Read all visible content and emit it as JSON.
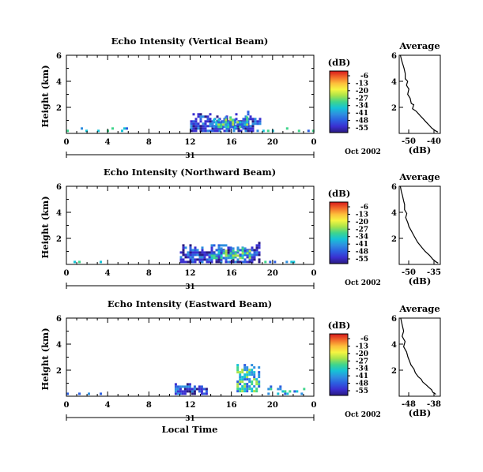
{
  "colorbar": {
    "unit_label": "(dB)",
    "ticks": [
      "-6",
      "-13",
      "-20",
      "-27",
      "-34",
      "-41",
      "-48",
      "-55"
    ],
    "colors": [
      "#d7191c",
      "#f26b2a",
      "#fdbf3b",
      "#f5f542",
      "#a8e34a",
      "#3fd58c",
      "#16c2d6",
      "#2e8fe0",
      "#2c5fe0",
      "#3a2fd0",
      "#2a1a80"
    ]
  },
  "footer": {
    "date_label": "Oct 2002",
    "day_label": "31",
    "xlabel": "Local Time"
  },
  "chart_data": [
    {
      "type": "heatmap",
      "title": "Echo Intensity (Vertical Beam)",
      "ylabel": "Height (km)",
      "xlim": [
        0,
        24
      ],
      "ylim": [
        0,
        6
      ],
      "x_ticks": [
        "0",
        "4",
        "8",
        "12",
        "16",
        "20",
        "0"
      ],
      "y_ticks": [
        "2",
        "4",
        "6"
      ],
      "echo_regions": [
        {
          "x": [
            0.0,
            6.0
          ],
          "y": [
            0.1,
            0.55
          ],
          "level": "weak",
          "dB": -50
        },
        {
          "x": [
            12.0,
            18.8
          ],
          "y": [
            0.1,
            1.8
          ],
          "level": "main",
          "dB": -45
        },
        {
          "x": [
            14.2,
            17.5
          ],
          "y": [
            0.4,
            1.4
          ],
          "level": "core",
          "dB": -40
        },
        {
          "x": [
            19.0,
            24.0
          ],
          "y": [
            0.1,
            0.55
          ],
          "level": "weak",
          "dB": -50
        }
      ]
    },
    {
      "type": "line",
      "title": "Average",
      "xlabel": "(dB)",
      "x_ticks": [
        "-50",
        "-40"
      ],
      "xlim": [
        -52,
        -35
      ],
      "ylim": [
        0,
        6
      ],
      "y_ticks": [
        "2",
        "4",
        "6"
      ],
      "x": [
        -51.5,
        -51,
        -50.5,
        -50,
        -49.5,
        -49.5,
        -48.5,
        -49,
        -48,
        -48.5,
        -47.5,
        -47,
        -46,
        -46.5,
        -45,
        -44,
        -43,
        -42,
        -41,
        -40,
        -38.5,
        -37,
        -36
      ],
      "y": [
        6.0,
        5.6,
        5.3,
        5.0,
        4.6,
        4.2,
        4.0,
        3.7,
        3.4,
        3.0,
        2.7,
        2.3,
        2.2,
        1.9,
        1.7,
        1.5,
        1.3,
        1.1,
        0.9,
        0.7,
        0.4,
        0.2,
        0.1
      ]
    },
    {
      "type": "heatmap",
      "title": "Echo Intensity (Northward Beam)",
      "ylabel": "Height (km)",
      "xlim": [
        0,
        24
      ],
      "ylim": [
        0,
        6
      ],
      "x_ticks": [
        "0",
        "4",
        "8",
        "12",
        "16",
        "20",
        "0"
      ],
      "y_ticks": [
        "2",
        "4",
        "6"
      ],
      "echo_regions": [
        {
          "x": [
            0.0,
            3.5
          ],
          "y": [
            0.1,
            0.45
          ],
          "level": "weak",
          "dB": -50
        },
        {
          "x": [
            11.0,
            18.8
          ],
          "y": [
            0.1,
            1.9
          ],
          "level": "main",
          "dB": -45
        },
        {
          "x": [
            14.0,
            17.8
          ],
          "y": [
            0.4,
            1.5
          ],
          "level": "core",
          "dB": -40
        },
        {
          "x": [
            18.5,
            22.0
          ],
          "y": [
            0.1,
            0.4
          ],
          "level": "weak",
          "dB": -50
        }
      ]
    },
    {
      "type": "line",
      "title": "Average",
      "xlabel": "(dB)",
      "x_ticks": [
        "-50",
        "-35"
      ],
      "xlim": [
        -52,
        -33
      ],
      "ylim": [
        0,
        6
      ],
      "y_ticks": [
        "2",
        "4",
        "6"
      ],
      "x": [
        -51.5,
        -51,
        -50.5,
        -50,
        -49.5,
        -49.5,
        -48.5,
        -49,
        -48,
        -47.5,
        -46.5,
        -45.5,
        -44.5,
        -43.5,
        -42.5,
        -41.5,
        -40,
        -38,
        -36.5,
        -35,
        -34
      ],
      "y": [
        6.0,
        5.6,
        5.3,
        4.9,
        4.6,
        4.2,
        3.9,
        3.6,
        3.2,
        2.9,
        2.6,
        2.3,
        2.0,
        1.7,
        1.5,
        1.3,
        1.0,
        0.7,
        0.4,
        0.2,
        0.1
      ]
    },
    {
      "type": "heatmap",
      "title": "Echo Intensity (Eastward Beam)",
      "ylabel": "Height (km)",
      "xlim": [
        0,
        24
      ],
      "ylim": [
        0,
        6
      ],
      "x_ticks": [
        "0",
        "4",
        "8",
        "12",
        "16",
        "20",
        "0"
      ],
      "y_ticks": [
        "2",
        "4",
        "6"
      ],
      "echo_regions": [
        {
          "x": [
            0.0,
            4.5
          ],
          "y": [
            0.1,
            0.4
          ],
          "level": "weak",
          "dB": -50
        },
        {
          "x": [
            10.5,
            13.5
          ],
          "y": [
            0.1,
            1.2
          ],
          "level": "main",
          "dB": -45
        },
        {
          "x": [
            16.5,
            18.7
          ],
          "y": [
            0.3,
            2.6
          ],
          "level": "core",
          "dB": -40
        },
        {
          "x": [
            19.5,
            23.0
          ],
          "y": [
            0.1,
            0.9
          ],
          "level": "weak",
          "dB": -50
        }
      ]
    },
    {
      "type": "line",
      "title": "Average",
      "xlabel": "(dB)",
      "x_ticks": [
        "-48",
        "-38"
      ],
      "xlim": [
        -50,
        -36
      ],
      "ylim": [
        0,
        6
      ],
      "y_ticks": [
        "2",
        "4",
        "6"
      ],
      "x": [
        -49.5,
        -49,
        -48.5,
        -49,
        -48,
        -48.5,
        -47.5,
        -47,
        -46.5,
        -46,
        -45,
        -44.5,
        -43.5,
        -42.5,
        -42,
        -41,
        -40,
        -39,
        -38.5,
        -37.5
      ],
      "y": [
        6.0,
        5.5,
        5.0,
        4.6,
        4.2,
        3.8,
        3.4,
        3.0,
        2.7,
        2.4,
        2.1,
        1.8,
        1.5,
        1.3,
        1.1,
        0.9,
        0.7,
        0.5,
        0.3,
        0.15
      ]
    }
  ]
}
